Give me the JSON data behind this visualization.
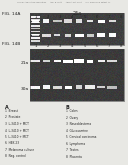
{
  "header_text": "Human Application Publication      App. B. Blott      Absent Set or Cit      U.S. Provisional Patent +1",
  "fig14a_label": "FIG. 14A",
  "fig14b_label": "FIG. 14B",
  "lane_label_a": "25a",
  "lane_numbers": [
    "1",
    "2",
    "3",
    "4",
    "5",
    "6",
    "7",
    "8"
  ],
  "band_label_21": "21a",
  "band_label_30": "30a",
  "col_a_title": "A",
  "col_b_title": "B",
  "col_a_items": [
    "1  Breast",
    "2  Prostate",
    "3  L-3410 + MCT",
    "4  L-3410 + MCT",
    "5  L-3410 + MCT",
    "6  HEK 23",
    "7  Melanoma culture",
    "8  Neg. control"
  ],
  "col_b_items": [
    "1  Colon",
    "2  Ovary",
    "3  Neuroblastoma",
    "4  Glucosamine",
    "5  Cervical carcinoma",
    "6  Lymphoma",
    "7  Testes",
    "8  Placenta"
  ],
  "background_color": "#e8e8e4",
  "gel_dark": 0.28,
  "gel_mid": 0.55,
  "gel_bright": 0.85
}
